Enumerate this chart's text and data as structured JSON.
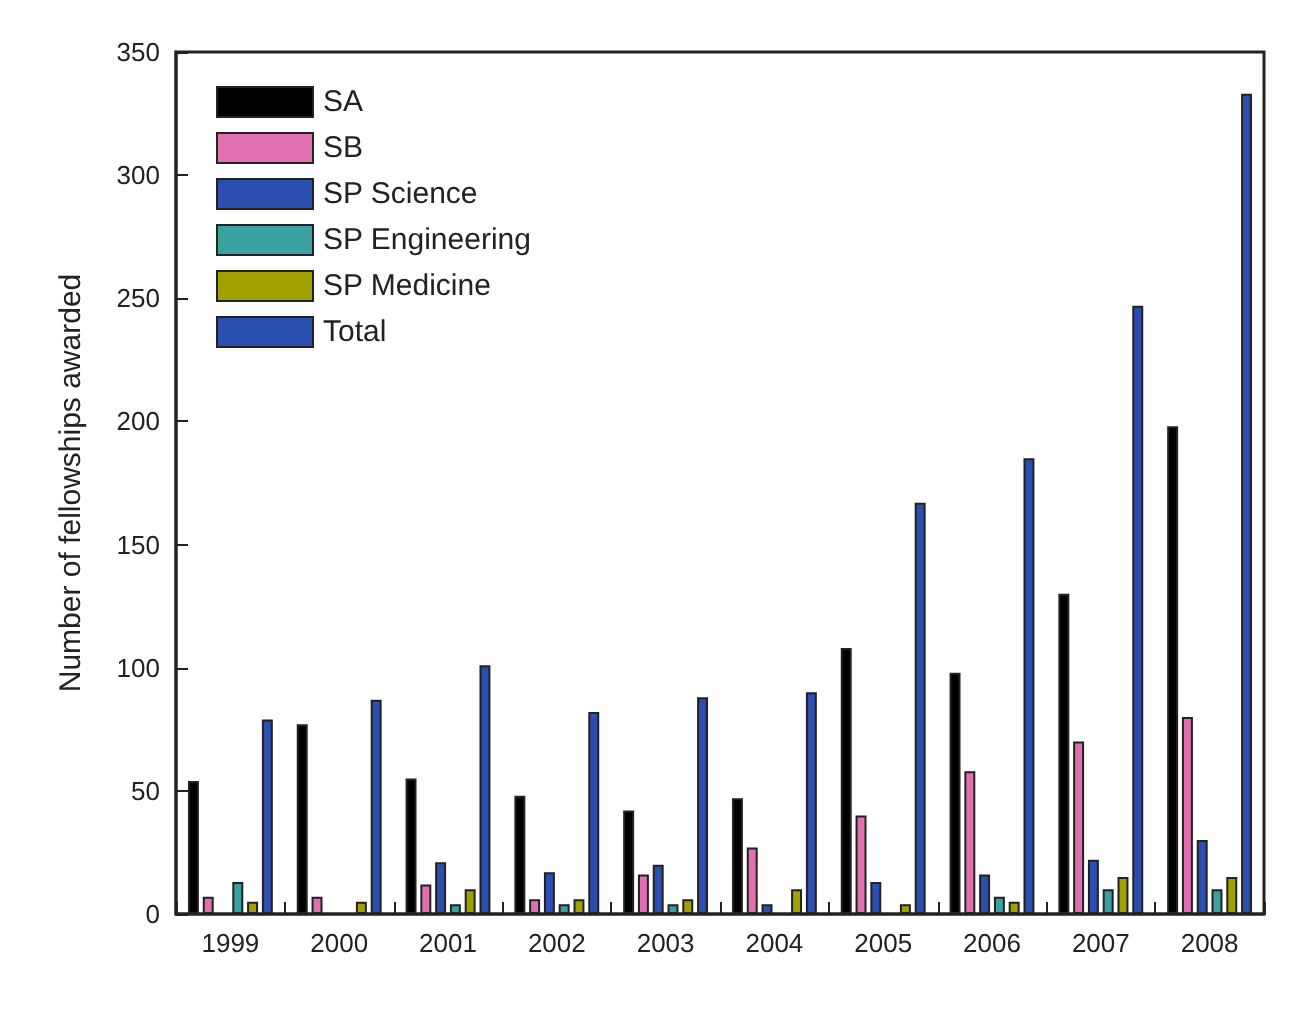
{
  "chart_data": {
    "type": "bar",
    "ylabel": "Number of fellowships awarded",
    "categories": [
      "1999",
      "2000",
      "2001",
      "2002",
      "2003",
      "2004",
      "2005",
      "2006",
      "2007",
      "2008"
    ],
    "series": [
      {
        "name": "SA",
        "color": "#000000",
        "values": [
          54,
          77,
          55,
          48,
          42,
          47,
          108,
          98,
          130,
          198
        ]
      },
      {
        "name": "SB",
        "color": "#e070b0",
        "values": [
          7,
          7,
          12,
          6,
          16,
          27,
          40,
          58,
          70,
          80
        ]
      },
      {
        "name": "SP Science",
        "color": "#2a4fb0",
        "values": [
          0,
          0,
          21,
          17,
          20,
          4,
          13,
          16,
          22,
          30
        ]
      },
      {
        "name": "SP Engineering",
        "color": "#3aa0a0",
        "values": [
          13,
          0,
          4,
          4,
          4,
          0,
          0,
          7,
          10,
          10
        ]
      },
      {
        "name": "SP Medicine",
        "color": "#a0a000",
        "values": [
          5,
          5,
          10,
          6,
          6,
          10,
          4,
          5,
          15,
          15
        ]
      },
      {
        "name": "Total",
        "color": "#2a4fb0",
        "values": [
          79,
          87,
          101,
          82,
          88,
          90,
          167,
          185,
          247,
          333
        ]
      }
    ],
    "ylim": [
      0,
      350
    ],
    "yticks": [
      0,
      50,
      100,
      150,
      200,
      250,
      300,
      350
    ],
    "grid": false,
    "legend": "top left"
  }
}
